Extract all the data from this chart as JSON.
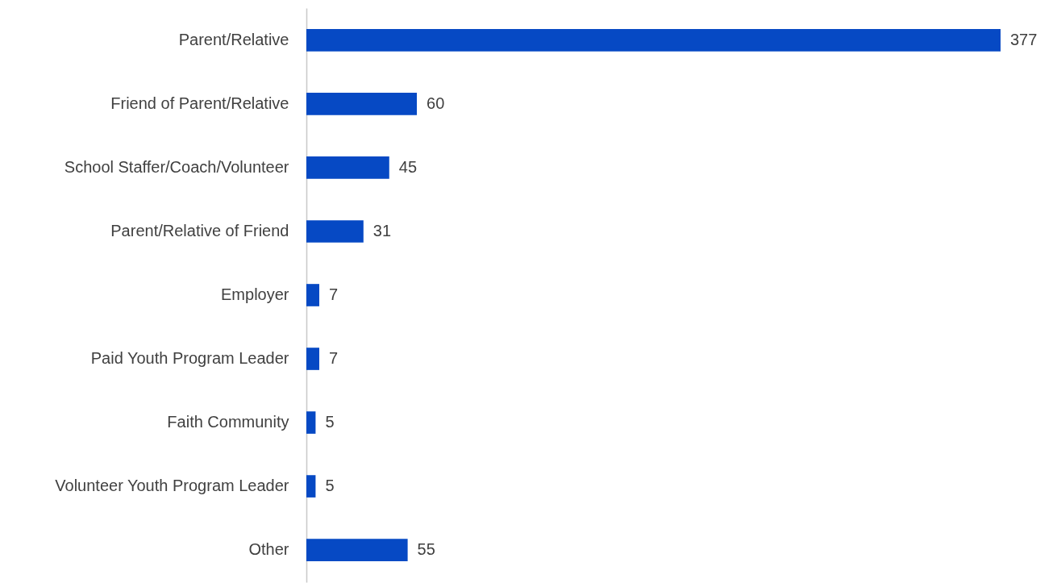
{
  "chart_data": {
    "type": "bar",
    "orientation": "horizontal",
    "data_labels": true,
    "color": "#0649c4",
    "categories": [
      "Parent/Relative",
      "Friend of Parent/Relative",
      "School Staffer/Coach/Volunteer",
      "Parent/Relative of Friend",
      "Employer",
      "Paid Youth Program Leader",
      "Faith Community",
      "Volunteer Youth Program Leader",
      "Other"
    ],
    "values": [
      377,
      60,
      45,
      31,
      7,
      7,
      5,
      5,
      55
    ]
  }
}
